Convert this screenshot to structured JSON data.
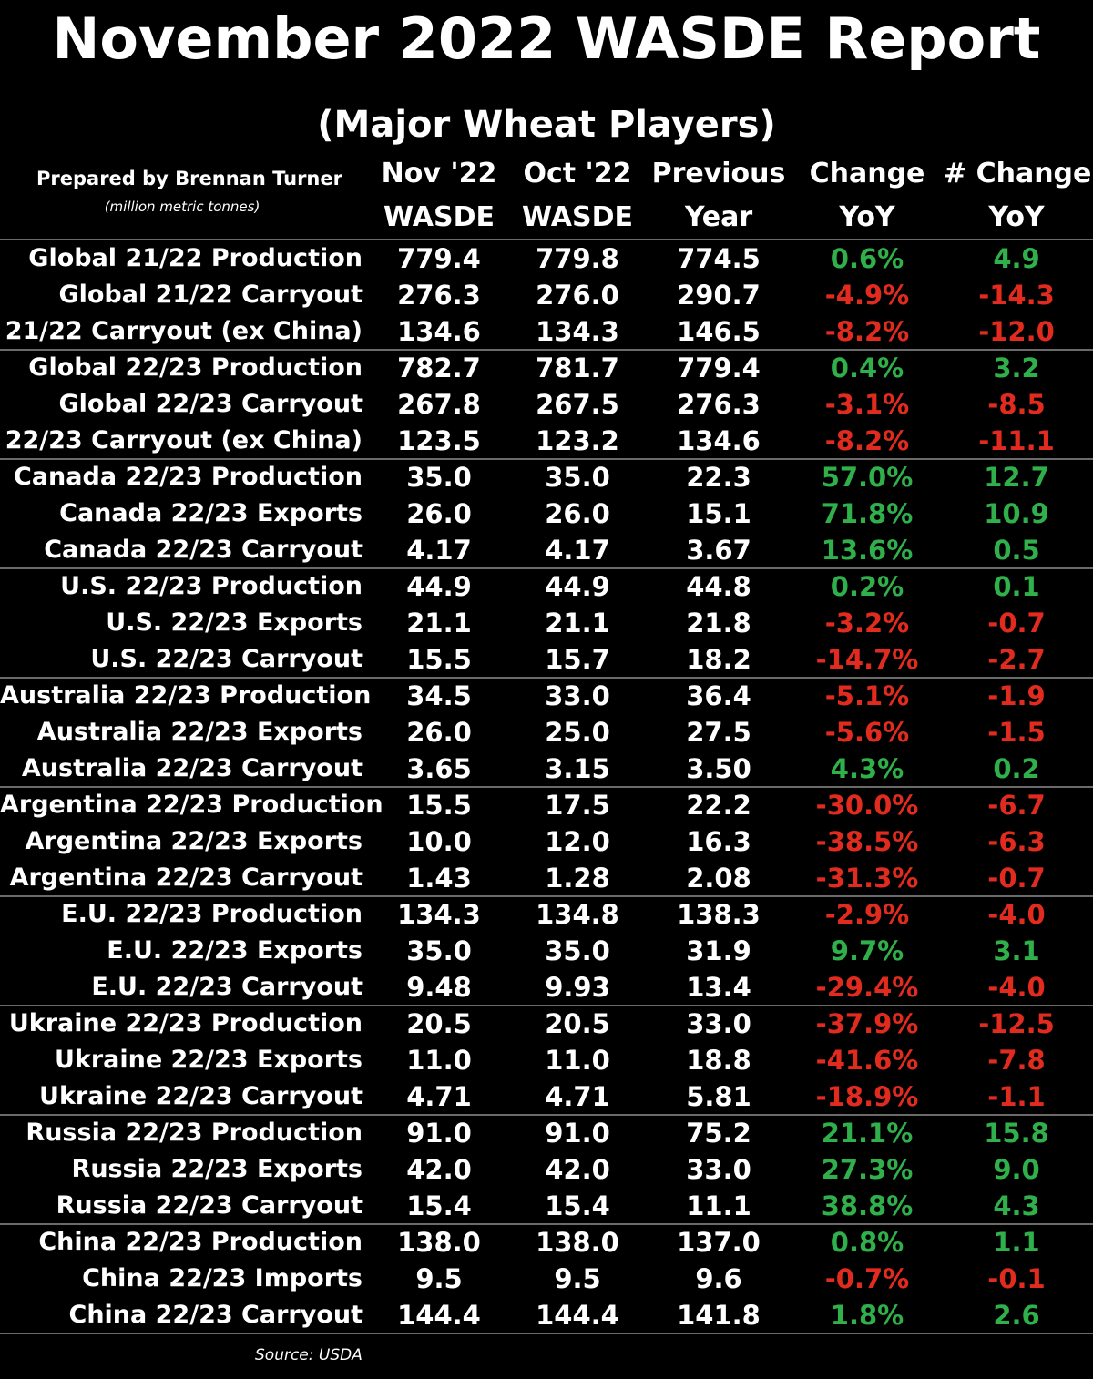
{
  "title": "November 2022 WASDE Report",
  "subtitle": "(Major Wheat Players)",
  "prepared_by": "Prepared by Brennan Turner",
  "units": "(million metric tonnes)",
  "source": "Source: USDA",
  "colors": {
    "positive": "#2fb04a",
    "negative": "#e22b1f",
    "text": "#ffffff",
    "background": "#000000"
  },
  "chart_data": {
    "type": "table",
    "columns": [
      {
        "line1": "Nov '22",
        "line2": "WASDE"
      },
      {
        "line1": "Oct '22",
        "line2": "WASDE"
      },
      {
        "line1": "Previous",
        "line2": "Year"
      },
      {
        "line1": "Change",
        "line2": "YoY"
      },
      {
        "line1": "# Change",
        "line2": "YoY"
      }
    ],
    "groups": [
      {
        "rows": [
          {
            "label": "Global 21/22 Production",
            "nov": "779.4",
            "oct": "779.8",
            "prev": "774.5",
            "pct": "0.6%",
            "chg": "4.9"
          },
          {
            "label": "Global 21/22 Carryout",
            "nov": "276.3",
            "oct": "276.0",
            "prev": "290.7",
            "pct": "-4.9%",
            "chg": "-14.3"
          },
          {
            "label": "21/22 Carryout (ex China)",
            "nov": "134.6",
            "oct": "134.3",
            "prev": "146.5",
            "pct": "-8.2%",
            "chg": "-12.0"
          }
        ]
      },
      {
        "rows": [
          {
            "label": "Global 22/23 Production",
            "nov": "782.7",
            "oct": "781.7",
            "prev": "779.4",
            "pct": "0.4%",
            "chg": "3.2"
          },
          {
            "label": "Global 22/23 Carryout",
            "nov": "267.8",
            "oct": "267.5",
            "prev": "276.3",
            "pct": "-3.1%",
            "chg": "-8.5"
          },
          {
            "label": "22/23 Carryout (ex China)",
            "nov": "123.5",
            "oct": "123.2",
            "prev": "134.6",
            "pct": "-8.2%",
            "chg": "-11.1"
          }
        ]
      },
      {
        "rows": [
          {
            "label": "Canada 22/23 Production",
            "nov": "35.0",
            "oct": "35.0",
            "prev": "22.3",
            "pct": "57.0%",
            "chg": "12.7"
          },
          {
            "label": "Canada 22/23 Exports",
            "nov": "26.0",
            "oct": "26.0",
            "prev": "15.1",
            "pct": "71.8%",
            "chg": "10.9"
          },
          {
            "label": "Canada 22/23 Carryout",
            "nov": "4.17",
            "oct": "4.17",
            "prev": "3.67",
            "pct": "13.6%",
            "chg": "0.5"
          }
        ]
      },
      {
        "rows": [
          {
            "label": "U.S. 22/23 Production",
            "nov": "44.9",
            "oct": "44.9",
            "prev": "44.8",
            "pct": "0.2%",
            "chg": "0.1"
          },
          {
            "label": "U.S. 22/23 Exports",
            "nov": "21.1",
            "oct": "21.1",
            "prev": "21.8",
            "pct": "-3.2%",
            "chg": "-0.7"
          },
          {
            "label": "U.S. 22/23 Carryout",
            "nov": "15.5",
            "oct": "15.7",
            "prev": "18.2",
            "pct": "-14.7%",
            "chg": "-2.7"
          }
        ]
      },
      {
        "rows": [
          {
            "label": "Australia 22/23 Production",
            "nov": "34.5",
            "oct": "33.0",
            "prev": "36.4",
            "pct": "-5.1%",
            "chg": "-1.9"
          },
          {
            "label": "Australia 22/23 Exports",
            "nov": "26.0",
            "oct": "25.0",
            "prev": "27.5",
            "pct": "-5.6%",
            "chg": "-1.5"
          },
          {
            "label": "Australia 22/23 Carryout",
            "nov": "3.65",
            "oct": "3.15",
            "prev": "3.50",
            "pct": "4.3%",
            "chg": "0.2"
          }
        ]
      },
      {
        "rows": [
          {
            "label": "Argentina 22/23 Production",
            "nov": "15.5",
            "oct": "17.5",
            "prev": "22.2",
            "pct": "-30.0%",
            "chg": "-6.7"
          },
          {
            "label": "Argentina 22/23 Exports",
            "nov": "10.0",
            "oct": "12.0",
            "prev": "16.3",
            "pct": "-38.5%",
            "chg": "-6.3"
          },
          {
            "label": "Argentina 22/23 Carryout",
            "nov": "1.43",
            "oct": "1.28",
            "prev": "2.08",
            "pct": "-31.3%",
            "chg": "-0.7"
          }
        ]
      },
      {
        "rows": [
          {
            "label": "E.U. 22/23 Production",
            "nov": "134.3",
            "oct": "134.8",
            "prev": "138.3",
            "pct": "-2.9%",
            "chg": "-4.0"
          },
          {
            "label": "E.U. 22/23 Exports",
            "nov": "35.0",
            "oct": "35.0",
            "prev": "31.9",
            "pct": "9.7%",
            "chg": "3.1"
          },
          {
            "label": "E.U. 22/23 Carryout",
            "nov": "9.48",
            "oct": "9.93",
            "prev": "13.4",
            "pct": "-29.4%",
            "chg": "-4.0"
          }
        ]
      },
      {
        "rows": [
          {
            "label": "Ukraine 22/23 Production",
            "nov": "20.5",
            "oct": "20.5",
            "prev": "33.0",
            "pct": "-37.9%",
            "chg": "-12.5"
          },
          {
            "label": "Ukraine 22/23 Exports",
            "nov": "11.0",
            "oct": "11.0",
            "prev": "18.8",
            "pct": "-41.6%",
            "chg": "-7.8"
          },
          {
            "label": "Ukraine 22/23 Carryout",
            "nov": "4.71",
            "oct": "4.71",
            "prev": "5.81",
            "pct": "-18.9%",
            "chg": "-1.1"
          }
        ]
      },
      {
        "rows": [
          {
            "label": "Russia 22/23 Production",
            "nov": "91.0",
            "oct": "91.0",
            "prev": "75.2",
            "pct": "21.1%",
            "chg": "15.8"
          },
          {
            "label": "Russia 22/23 Exports",
            "nov": "42.0",
            "oct": "42.0",
            "prev": "33.0",
            "pct": "27.3%",
            "chg": "9.0"
          },
          {
            "label": "Russia 22/23 Carryout",
            "nov": "15.4",
            "oct": "15.4",
            "prev": "11.1",
            "pct": "38.8%",
            "chg": "4.3"
          }
        ]
      },
      {
        "rows": [
          {
            "label": "China 22/23 Production",
            "nov": "138.0",
            "oct": "138.0",
            "prev": "137.0",
            "pct": "0.8%",
            "chg": "1.1"
          },
          {
            "label": "China 22/23 Imports",
            "nov": "9.5",
            "oct": "9.5",
            "prev": "9.6",
            "pct": "-0.7%",
            "chg": "-0.1"
          },
          {
            "label": "China 22/23 Carryout",
            "nov": "144.4",
            "oct": "144.4",
            "prev": "141.8",
            "pct": "1.8%",
            "chg": "2.6"
          }
        ]
      }
    ]
  }
}
